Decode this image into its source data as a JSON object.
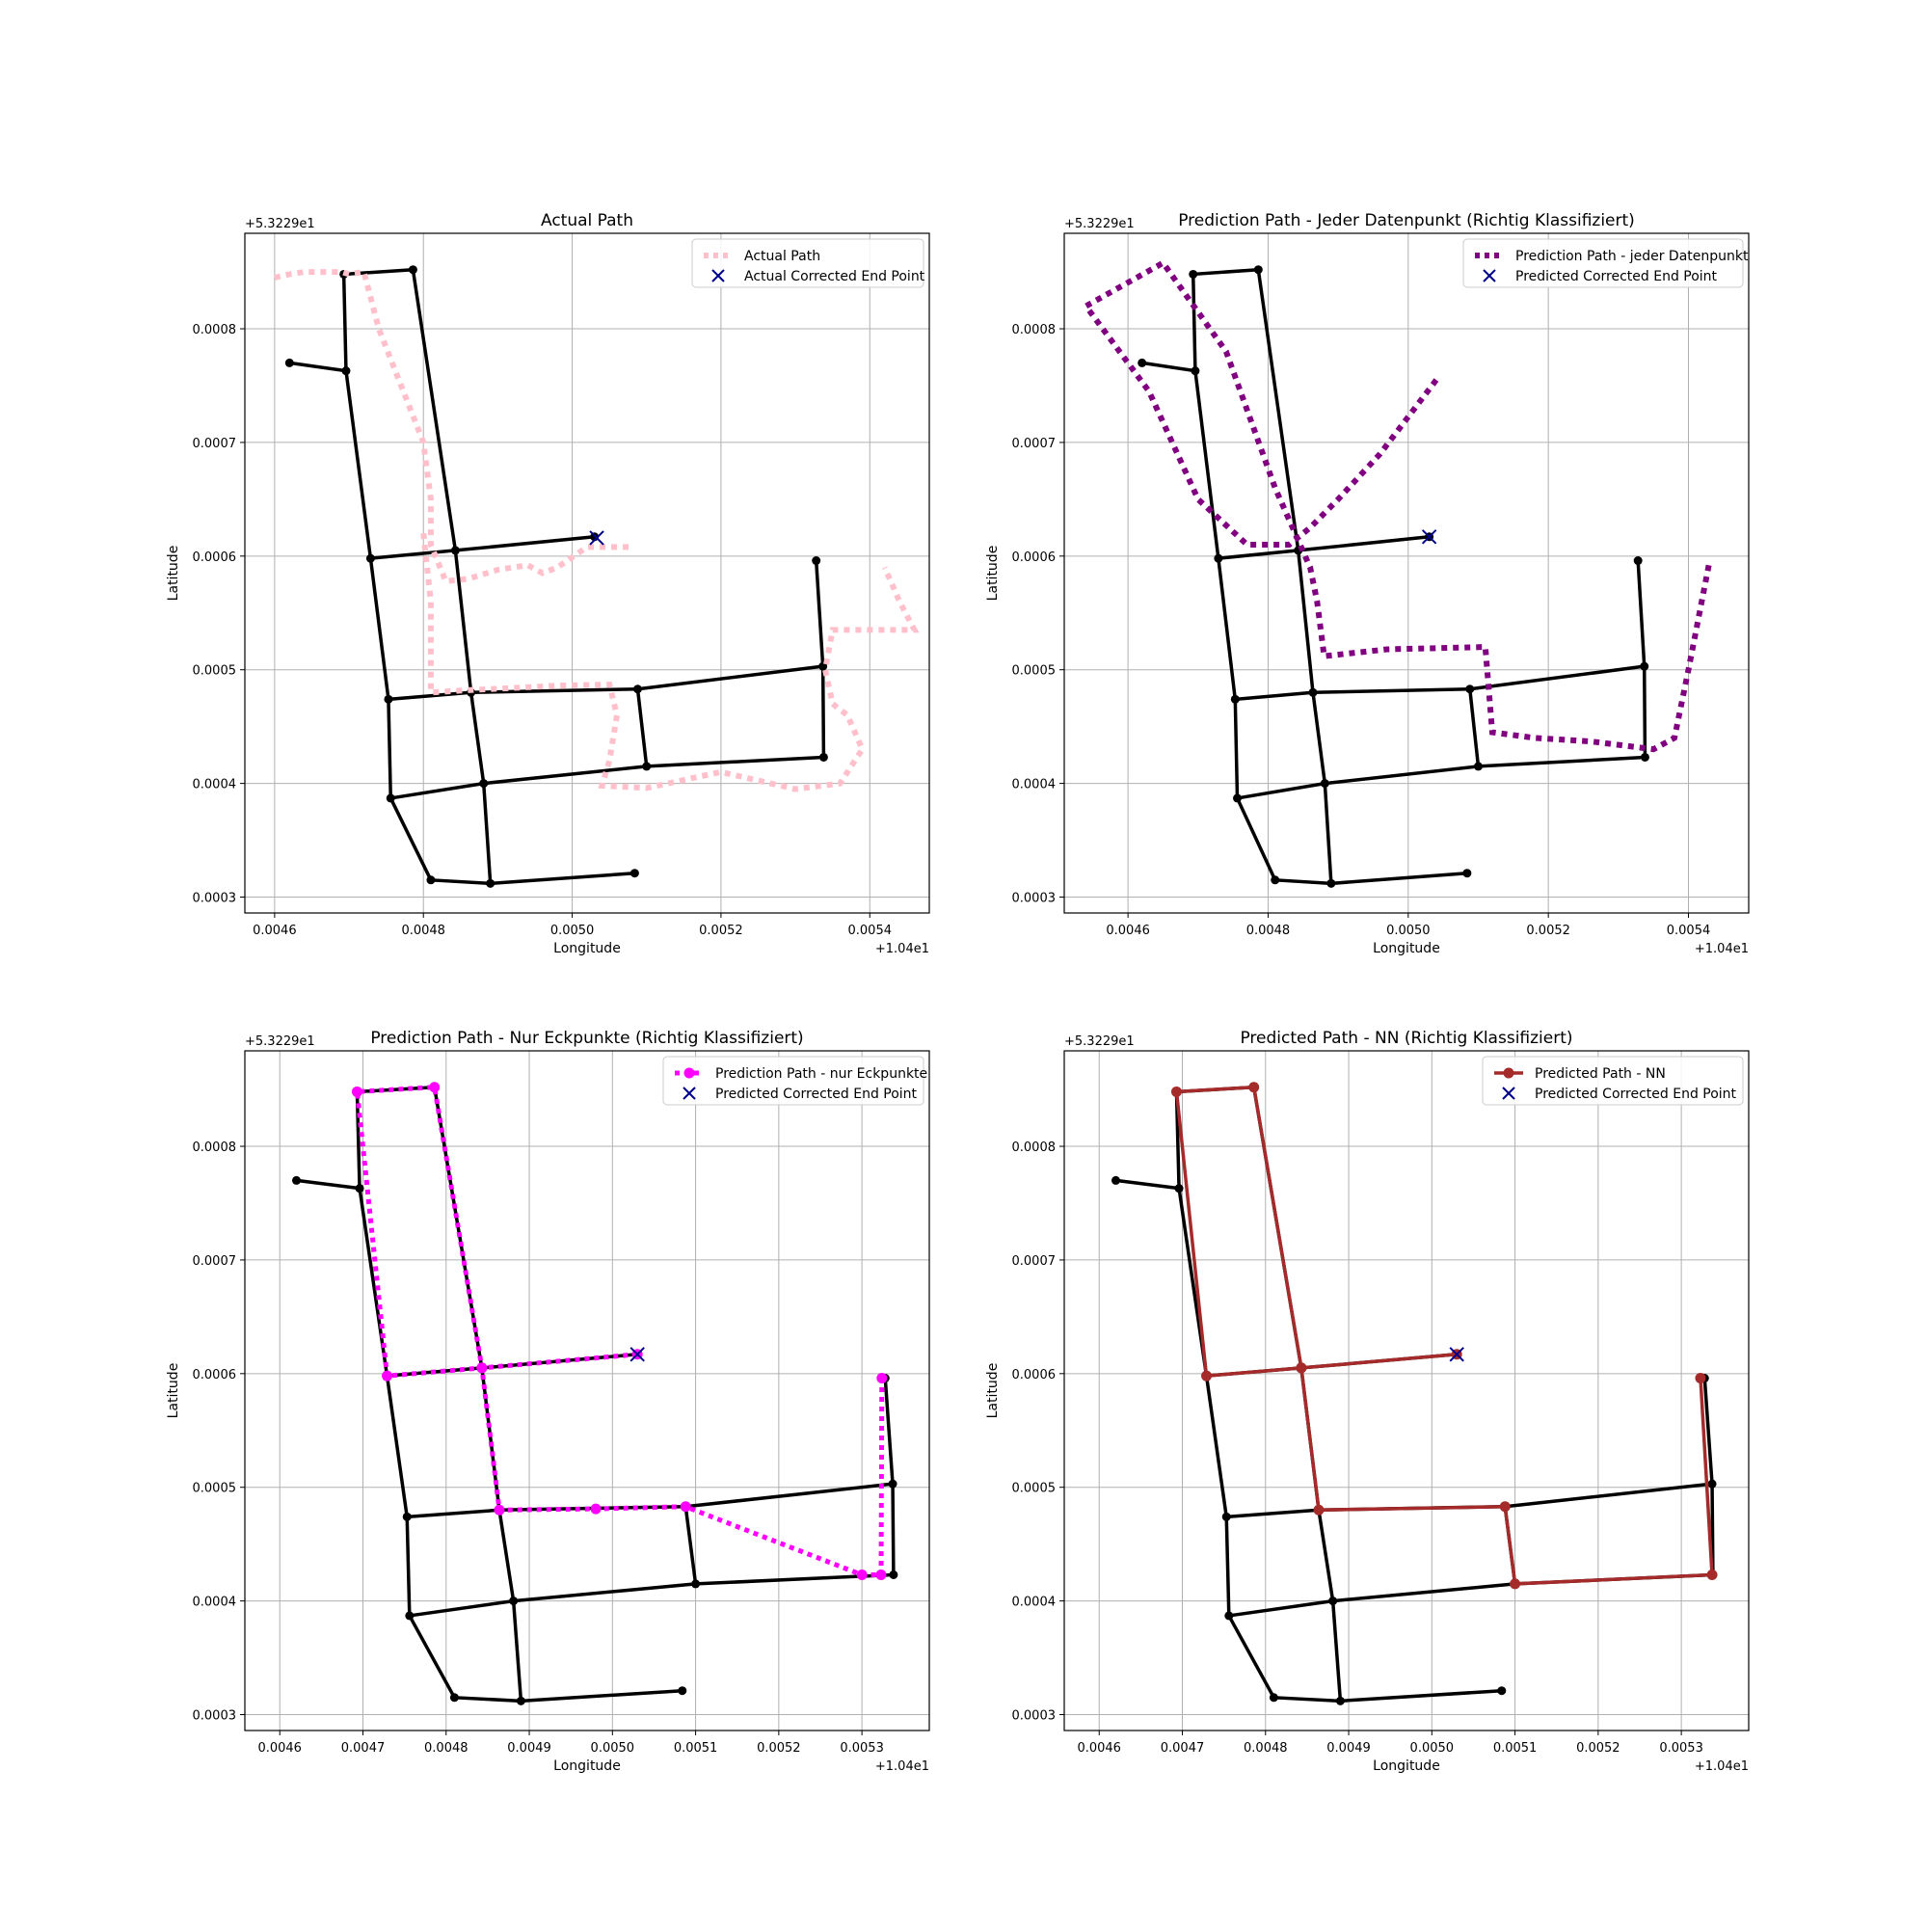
{
  "chart_data": [
    {
      "type": "line",
      "title": "Actual Path",
      "xlabel": "Longitude",
      "ylabel": "Latitude",
      "x_offset_label": "+1.04e1",
      "y_offset_label": "+5.3229e1",
      "xlim": [
        0.00456,
        0.00548
      ],
      "ylim": [
        0.000286,
        0.000884
      ],
      "xticks": [
        0.0046,
        0.0048,
        0.005,
        0.0052,
        0.0054
      ],
      "xtick_labels": [
        "0.0046",
        "0.0048",
        "0.0050",
        "0.0052",
        "0.0054"
      ],
      "yticks": [
        0.0003,
        0.0004,
        0.0005,
        0.0006,
        0.0007,
        0.0008
      ],
      "ytick_labels": [
        "0.0003",
        "0.0004",
        "0.0005",
        "0.0006",
        "0.0007",
        "0.0008"
      ],
      "grid": true,
      "legend_location": "top-right",
      "legend": [
        {
          "label": "Actual Path",
          "style": "dotted-thick",
          "color": "#ffc0cb"
        },
        {
          "label": "Actual Corrected End Point",
          "style": "x-marker",
          "color": "#00008b"
        }
      ],
      "path": {
        "name": "Actual Path",
        "color": "#ffc0cb",
        "style": "dotted-thick",
        "markers": false,
        "x": [
          0.0046,
          0.00462,
          0.00464,
          0.00466,
          0.00469,
          0.0047,
          0.00472,
          0.00474,
          0.00477,
          0.0048,
          0.00481,
          0.00481,
          0.00483,
          0.00486,
          0.0049,
          0.00494,
          0.00496,
          0.00498,
          0.00502,
          0.00508
        ],
        "y": [
          0.000845,
          0.000848,
          0.00085,
          0.00085,
          0.00085,
          0.000848,
          0.00085,
          0.0008,
          0.00075,
          0.0007,
          0.00065,
          0.00061,
          0.000578,
          0.00058,
          0.000588,
          0.000592,
          0.000585,
          0.00059,
          0.000608,
          0.000608
        ],
        "x2": [
          0.0048,
          0.00481,
          0.00481,
          0.00486,
          0.00492,
          0.00498,
          0.00505,
          0.00506,
          0.00505,
          0.00504,
          0.0051,
          0.0052,
          0.0053,
          0.00536,
          0.00539,
          0.00537,
          0.00535,
          0.00534,
          0.00535,
          0.0054,
          0.00546,
          0.00544,
          0.00542
        ],
        "y2": [
          0.00062,
          0.00056,
          0.00048,
          0.000482,
          0.000484,
          0.000486,
          0.000487,
          0.00046,
          0.00042,
          0.000398,
          0.000396,
          0.00041,
          0.000395,
          0.0004,
          0.00043,
          0.00046,
          0.00047,
          0.0005,
          0.000535,
          0.000535,
          0.000535,
          0.00056,
          0.00059
        ]
      },
      "end_point": {
        "x": 0.005033,
        "y": 0.000616,
        "label": "Actual Corrected End Point"
      }
    },
    {
      "type": "line",
      "title": "Prediction Path - Jeder Datenpunkt (Richtig Klassifiziert)",
      "xlabel": "Longitude",
      "ylabel": "Latitude",
      "x_offset_label": "+1.04e1",
      "y_offset_label": "+5.3229e1",
      "xlim": [
        0.004509,
        0.005486
      ],
      "ylim": [
        0.000286,
        0.000884
      ],
      "xticks": [
        0.0046,
        0.0048,
        0.005,
        0.0052,
        0.0054
      ],
      "xtick_labels": [
        "0.0046",
        "0.0048",
        "0.0050",
        "0.0052",
        "0.0054"
      ],
      "yticks": [
        0.0003,
        0.0004,
        0.0005,
        0.0006,
        0.0007,
        0.0008
      ],
      "ytick_labels": [
        "0.0003",
        "0.0004",
        "0.0005",
        "0.0006",
        "0.0007",
        "0.0008"
      ],
      "grid": true,
      "legend_location": "top-right",
      "legend": [
        {
          "label": "Prediction Path - jeder Datenpunkt",
          "style": "dotted-thick",
          "color": "#800080"
        },
        {
          "label": "Predicted Corrected End Point",
          "style": "x-marker",
          "color": "#00008b"
        }
      ],
      "path": {
        "name": "Prediction Path - jeder Datenpunkt",
        "color": "#800080",
        "style": "dotted-thick",
        "markers": false,
        "x": [
          0.00504,
          0.00496,
          0.0049,
          0.00486,
          0.00483,
          0.00477,
          0.0047,
          0.00463,
          0.00454,
          0.00465,
          0.00474,
          0.00481,
          0.00486,
          0.00487,
          0.00488,
          0.00497,
          0.00511,
          0.00512,
          0.00518,
          0.00526,
          0.00535,
          0.00538,
          0.0054,
          0.00543
        ],
        "y": [
          0.000755,
          0.00069,
          0.00065,
          0.000625,
          0.00061,
          0.00061,
          0.00065,
          0.000745,
          0.00082,
          0.000858,
          0.00078,
          0.00066,
          0.00059,
          0.00056,
          0.000512,
          0.000518,
          0.00052,
          0.000445,
          0.00044,
          0.000437,
          0.00043,
          0.00044,
          0.0005,
          0.000595
        ]
      },
      "end_point": {
        "x": 0.00503,
        "y": 0.000617,
        "label": "Predicted Corrected End Point"
      }
    },
    {
      "type": "line",
      "title": "Prediction Path - Nur Eckpunkte (Richtig Klassifiziert)",
      "xlabel": "Longitude",
      "ylabel": "Latitude",
      "x_offset_label": "+1.04e1",
      "y_offset_label": "+5.3229e1",
      "xlim": [
        0.004558,
        0.005381
      ],
      "ylim": [
        0.000286,
        0.000884
      ],
      "xticks": [
        0.0046,
        0.0047,
        0.0048,
        0.0049,
        0.005,
        0.0051,
        0.0052,
        0.0053
      ],
      "xtick_labels": [
        "0.0046",
        "0.0047",
        "0.0048",
        "0.0049",
        "0.0050",
        "0.0051",
        "0.0052",
        "0.0053"
      ],
      "yticks": [
        0.0003,
        0.0004,
        0.0005,
        0.0006,
        0.0007,
        0.0008
      ],
      "ytick_labels": [
        "0.0003",
        "0.0004",
        "0.0005",
        "0.0006",
        "0.0007",
        "0.0008"
      ],
      "grid": true,
      "legend_location": "top-right",
      "legend": [
        {
          "label": "Prediction Path - nur Eckpunkte",
          "style": "dotted-markers",
          "color": "#ff00ff"
        },
        {
          "label": "Predicted Corrected End Point",
          "style": "x-marker",
          "color": "#00008b"
        }
      ],
      "path": {
        "name": "Prediction Path - nur Eckpunkte",
        "color": "#ff00ff",
        "style": "dotted-markers",
        "markers": true,
        "x": [
          0.00503,
          0.004843,
          0.004729,
          0.004693,
          0.004786,
          0.004843,
          0.004864,
          0.00498,
          0.005088,
          0.0053,
          0.005323,
          0.005324
        ],
        "y": [
          0.000617,
          0.000605,
          0.000598,
          0.000848,
          0.000852,
          0.000605,
          0.00048,
          0.000481,
          0.000483,
          0.000423,
          0.000423,
          0.000596
        ]
      },
      "end_point": {
        "x": 0.00503,
        "y": 0.000617,
        "label": "Predicted Corrected End Point"
      }
    },
    {
      "type": "line",
      "title": "Predicted Path - NN (Richtig Klassifiziert)",
      "xlabel": "Longitude",
      "ylabel": "Latitude",
      "x_offset_label": "+1.04e1",
      "y_offset_label": "+5.3229e1",
      "xlim": [
        0.004558,
        0.005381
      ],
      "ylim": [
        0.000286,
        0.000884
      ],
      "xticks": [
        0.0046,
        0.0047,
        0.0048,
        0.0049,
        0.005,
        0.0051,
        0.0052,
        0.0053
      ],
      "xtick_labels": [
        "0.0046",
        "0.0047",
        "0.0048",
        "0.0049",
        "0.0050",
        "0.0051",
        "0.0052",
        "0.0053"
      ],
      "yticks": [
        0.0003,
        0.0004,
        0.0005,
        0.0006,
        0.0007,
        0.0008
      ],
      "ytick_labels": [
        "0.0003",
        "0.0004",
        "0.0005",
        "0.0006",
        "0.0007",
        "0.0008"
      ],
      "grid": true,
      "legend_location": "top-right",
      "legend": [
        {
          "label": "Predicted Path - NN",
          "style": "solid-markers",
          "color": "#a52a2a"
        },
        {
          "label": "Predicted Corrected End Point",
          "style": "x-marker",
          "color": "#00008b"
        }
      ],
      "path": {
        "name": "Predicted Path - NN",
        "color": "#a52a2a",
        "style": "solid-markers",
        "markers": true,
        "x": [
          0.00503,
          0.004843,
          0.004729,
          0.004693,
          0.004786,
          0.004843,
          0.004864,
          0.005088,
          0.0051,
          0.005337,
          0.005323
        ],
        "y": [
          0.000617,
          0.000605,
          0.000598,
          0.000848,
          0.000852,
          0.000605,
          0.00048,
          0.000483,
          0.000415,
          0.000423,
          0.000596
        ]
      },
      "end_point": {
        "x": 0.00503,
        "y": 0.000617,
        "label": "Predicted Corrected End Point"
      }
    }
  ],
  "road_network": {
    "color": "#000000",
    "nodes": [
      [
        0.00462,
        0.00077
      ],
      [
        0.004693,
        0.000848
      ],
      [
        0.004786,
        0.000852
      ],
      [
        0.004696,
        0.000763
      ],
      [
        0.004729,
        0.000598
      ],
      [
        0.004843,
        0.000605
      ],
      [
        0.00503,
        0.000617
      ],
      [
        0.004753,
        0.000474
      ],
      [
        0.004864,
        0.00048
      ],
      [
        0.005088,
        0.000483
      ],
      [
        0.005337,
        0.000503
      ],
      [
        0.004756,
        0.000387
      ],
      [
        0.004881,
        0.0004
      ],
      [
        0.0051,
        0.000415
      ],
      [
        0.005338,
        0.000423
      ],
      [
        0.00481,
        0.000315
      ],
      [
        0.00489,
        0.000312
      ],
      [
        0.005084,
        0.000321
      ],
      [
        0.005328,
        0.000596
      ]
    ],
    "edges": [
      [
        0,
        3
      ],
      [
        1,
        3
      ],
      [
        1,
        2
      ],
      [
        3,
        4
      ],
      [
        2,
        5
      ],
      [
        4,
        5
      ],
      [
        5,
        6
      ],
      [
        4,
        7
      ],
      [
        5,
        8
      ],
      [
        7,
        8
      ],
      [
        8,
        9
      ],
      [
        9,
        10
      ],
      [
        7,
        11
      ],
      [
        8,
        12
      ],
      [
        9,
        13
      ],
      [
        11,
        12
      ],
      [
        12,
        13
      ],
      [
        13,
        14
      ],
      [
        10,
        14
      ],
      [
        18,
        10
      ],
      [
        11,
        15
      ],
      [
        15,
        16
      ],
      [
        12,
        16
      ],
      [
        16,
        17
      ]
    ]
  }
}
